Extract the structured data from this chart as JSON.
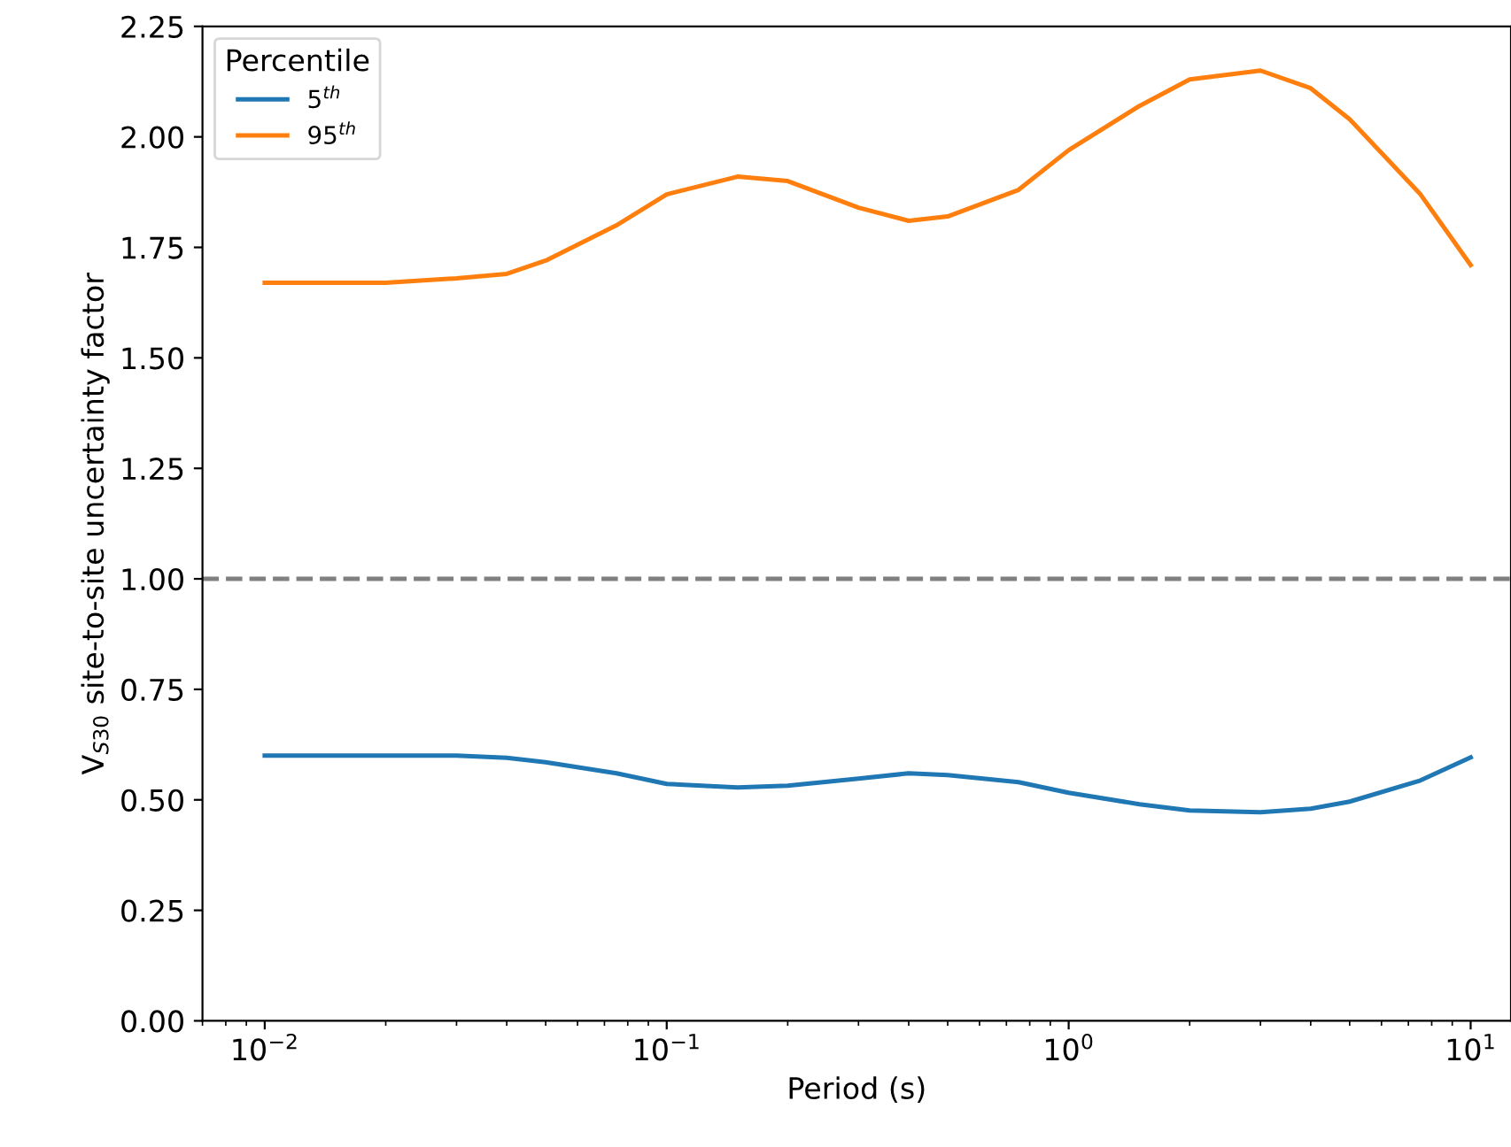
{
  "chart_data": {
    "type": "line",
    "xlabel": "Period (s)",
    "ylabel": "V$_{S30}$ site-to-site uncertainty factor",
    "legend_title": "Percentile",
    "legend": "top left",
    "log": "x",
    "grid": false,
    "line_style": "solid",
    "marker": "none",
    "x": [
      0.01,
      0.02,
      0.03,
      0.04,
      0.05,
      0.075,
      0.1,
      0.15,
      0.2,
      0.3,
      0.4,
      0.5,
      0.75,
      1,
      1.5,
      2,
      3,
      4,
      5,
      7.5,
      10
    ],
    "series": [
      {
        "name": "5$^{th}$",
        "color": "#1f77b4",
        "values": [
          0.6,
          0.6,
          0.6,
          0.595,
          0.585,
          0.56,
          0.536,
          0.528,
          0.532,
          0.548,
          0.56,
          0.556,
          0.54,
          0.516,
          0.49,
          0.476,
          0.472,
          0.48,
          0.496,
          0.544,
          0.596
        ]
      },
      {
        "name": "95$^{th}$",
        "color": "#ff7f0e",
        "values": [
          1.67,
          1.67,
          1.68,
          1.69,
          1.72,
          1.8,
          1.87,
          1.91,
          1.9,
          1.84,
          1.81,
          1.82,
          1.88,
          1.97,
          2.07,
          2.13,
          2.15,
          2.11,
          2.04,
          1.87,
          1.71
        ]
      }
    ],
    "ref_lines": [
      {
        "axis": "y",
        "value": 1.0,
        "color": "#808080",
        "line_style": "dashed"
      }
    ],
    "xlim": [
      0.007,
      12.6
    ],
    "xticks": [
      {
        "value": 0.01,
        "label": "10$^{−2}$"
      },
      {
        "value": 0.1,
        "label": "10$^{−1}$"
      },
      {
        "value": 1,
        "label": "10$^{0}$"
      },
      {
        "value": 10,
        "label": "10$^{1}$"
      }
    ],
    "ylim": [
      0,
      2.25
    ],
    "yticks": [
      {
        "value": 0,
        "label": "0.00"
      },
      {
        "value": 0.25,
        "label": "0.25"
      },
      {
        "value": 0.5,
        "label": "0.50"
      },
      {
        "value": 0.75,
        "label": "0.75"
      },
      {
        "value": 1.0,
        "label": "1.00"
      },
      {
        "value": 1.25,
        "label": "1.25"
      },
      {
        "value": 1.5,
        "label": "1.50"
      },
      {
        "value": 1.75,
        "label": "1.75"
      },
      {
        "value": 2.0,
        "label": "2.00"
      },
      {
        "value": 2.25,
        "label": "2.25"
      }
    ]
  }
}
